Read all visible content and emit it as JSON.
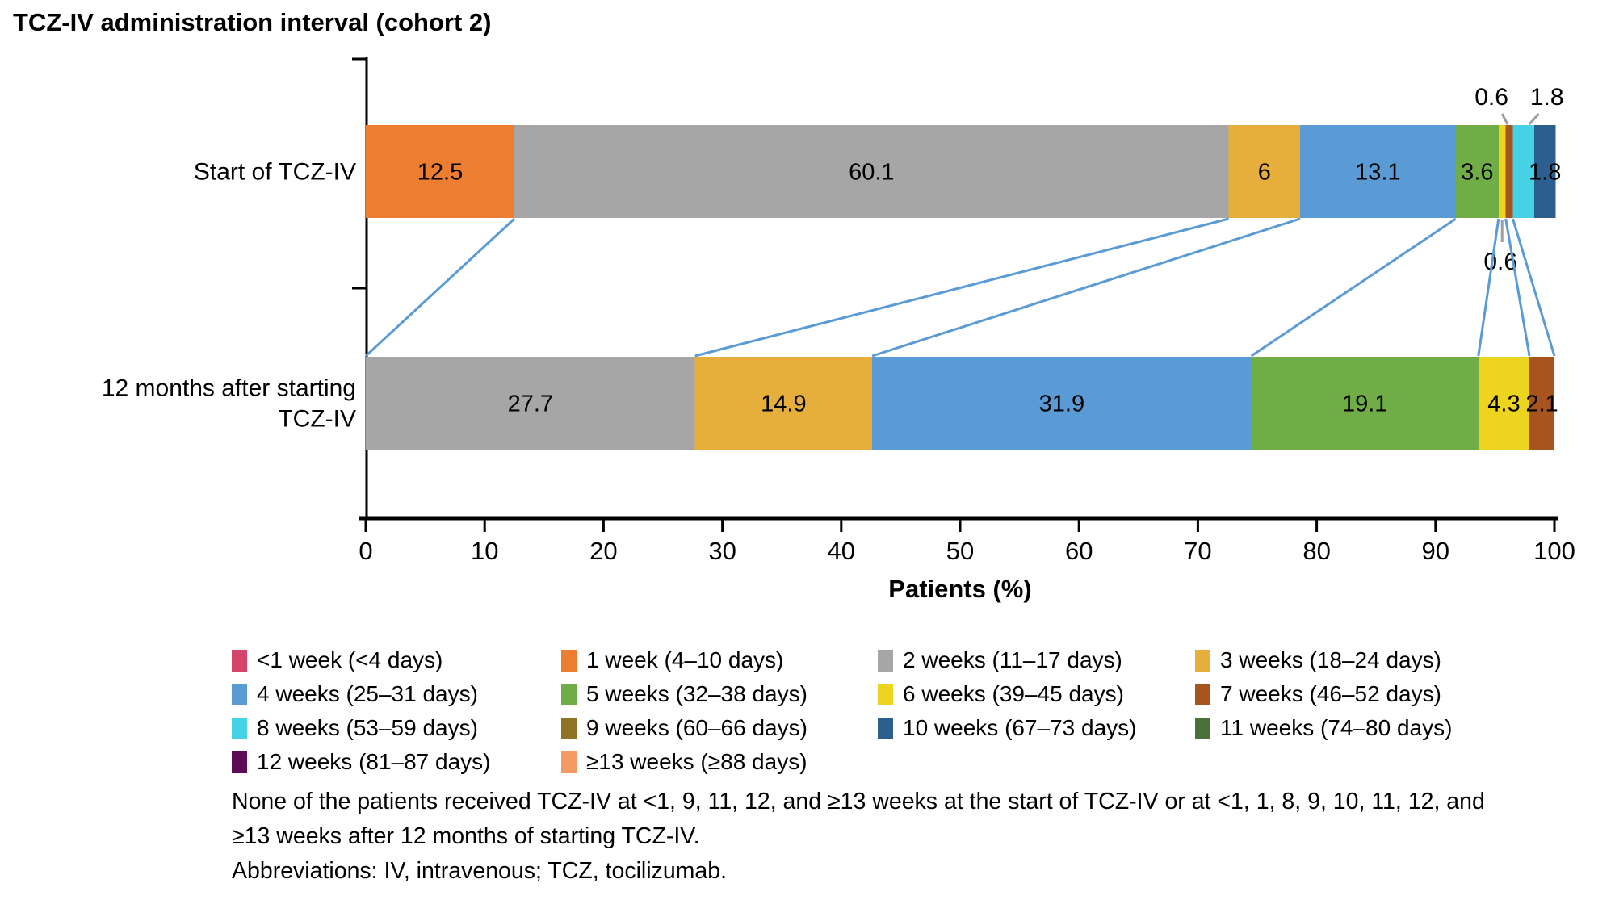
{
  "title": "TCZ-IV administration interval (cohort 2)",
  "chart_data": {
    "type": "stacked_bar_horizontal",
    "xlabel": "Patients (%)",
    "xlim": [
      0,
      100
    ],
    "x_ticks": [
      0,
      10,
      20,
      30,
      40,
      50,
      60,
      70,
      80,
      90,
      100
    ],
    "grid": false,
    "legend_position": "bottom",
    "palette": {
      "<1 week": "#D5446A",
      "1 week": "#ED7D31",
      "2 weeks": "#A6A6A6",
      "3 weeks": "#E6AE3B",
      "4 weeks": "#5B9BD5",
      "5 weeks": "#70AD47",
      "6 weeks": "#EDD51F",
      "7 weeks": "#A8541F",
      "8 weeks": "#45D2E4",
      "9 weeks": "#8F7425",
      "10 weeks": "#2D5F8E",
      "11 weeks": "#4A7137",
      "12 weeks": "#5D0B55",
      "≥13 weeks": "#F29B63"
    },
    "connector_color": "#5B9BD5",
    "leader_color": "#9E9E9E",
    "bars": [
      {
        "label_lines": [
          "Start of TCZ-IV"
        ],
        "segments": [
          {
            "key": "1 week",
            "value": 12.5,
            "label": "12.5",
            "label_pos": "inside"
          },
          {
            "key": "2 weeks",
            "value": 60.1,
            "label": "60.1",
            "label_pos": "inside"
          },
          {
            "key": "3 weeks",
            "value": 6,
            "label": "6",
            "label_pos": "inside"
          },
          {
            "key": "4 weeks",
            "value": 13.1,
            "label": "13.1",
            "label_pos": "inside"
          },
          {
            "key": "5 weeks",
            "value": 3.6,
            "label": "3.6",
            "label_pos": "inside"
          },
          {
            "key": "6 weeks",
            "value": 0.6,
            "label": "0.6",
            "label_pos": "below",
            "label_dx": -2
          },
          {
            "key": "7 weeks",
            "value": 0.6,
            "label": "0.6",
            "label_pos": "above",
            "label_dx": -22
          },
          {
            "key": "8 weeks",
            "value": 1.8,
            "label": "1.8",
            "label_pos": "above",
            "label_dx": 29
          },
          {
            "key": "10 weeks",
            "value": 1.8,
            "label": "1.8",
            "label_pos": "inside"
          }
        ]
      },
      {
        "label_lines": [
          "12 months after starting",
          "TCZ-IV"
        ],
        "segments": [
          {
            "key": "2 weeks",
            "value": 27.7,
            "label": "27.7",
            "label_pos": "inside"
          },
          {
            "key": "3 weeks",
            "value": 14.9,
            "label": "14.9",
            "label_pos": "inside"
          },
          {
            "key": "4 weeks",
            "value": 31.9,
            "label": "31.9",
            "label_pos": "inside"
          },
          {
            "key": "5 weeks",
            "value": 19.1,
            "label": "19.1",
            "label_pos": "inside"
          },
          {
            "key": "6 weeks",
            "value": 4.3,
            "label": "4.3",
            "label_pos": "inside"
          },
          {
            "key": "7 weeks",
            "value": 2.1,
            "label": "2.1",
            "label_pos": "inside"
          }
        ]
      }
    ],
    "legend": [
      {
        "key": "<1 week",
        "label": "<1 week (<4 days)"
      },
      {
        "key": "1 week",
        "label": "1 week (4–10 days)"
      },
      {
        "key": "2 weeks",
        "label": "2 weeks (11–17 days)"
      },
      {
        "key": "3 weeks",
        "label": "3 weeks (18–24 days)"
      },
      {
        "key": "4 weeks",
        "label": "4 weeks (25–31 days)"
      },
      {
        "key": "5 weeks",
        "label": "5 weeks (32–38 days)"
      },
      {
        "key": "6 weeks",
        "label": "6 weeks (39–45 days)"
      },
      {
        "key": "7 weeks",
        "label": "7 weeks (46–52 days)"
      },
      {
        "key": "8 weeks",
        "label": "8 weeks (53–59 days)"
      },
      {
        "key": "9 weeks",
        "label": "9 weeks (60–66 days)"
      },
      {
        "key": "10 weeks",
        "label": "10 weeks (67–73 days)"
      },
      {
        "key": "11 weeks",
        "label": "11 weeks (74–80 days)"
      },
      {
        "key": "12 weeks",
        "label": "12 weeks (81–87 days)"
      },
      {
        "key": "≥13 weeks",
        "label": "≥13 weeks (≥88 days)"
      }
    ]
  },
  "footnote": {
    "line1": "None of the patients received TCZ-IV at <1, 9, 11, 12, and ≥13 weeks at the start of TCZ-IV or at <1, 1, 8, 9, 10, 11, 12, and",
    "line2": "≥13 weeks after 12 months of starting TCZ-IV.",
    "abbreviations": "Abbreviations: IV, intravenous; TCZ, tocilizumab."
  }
}
